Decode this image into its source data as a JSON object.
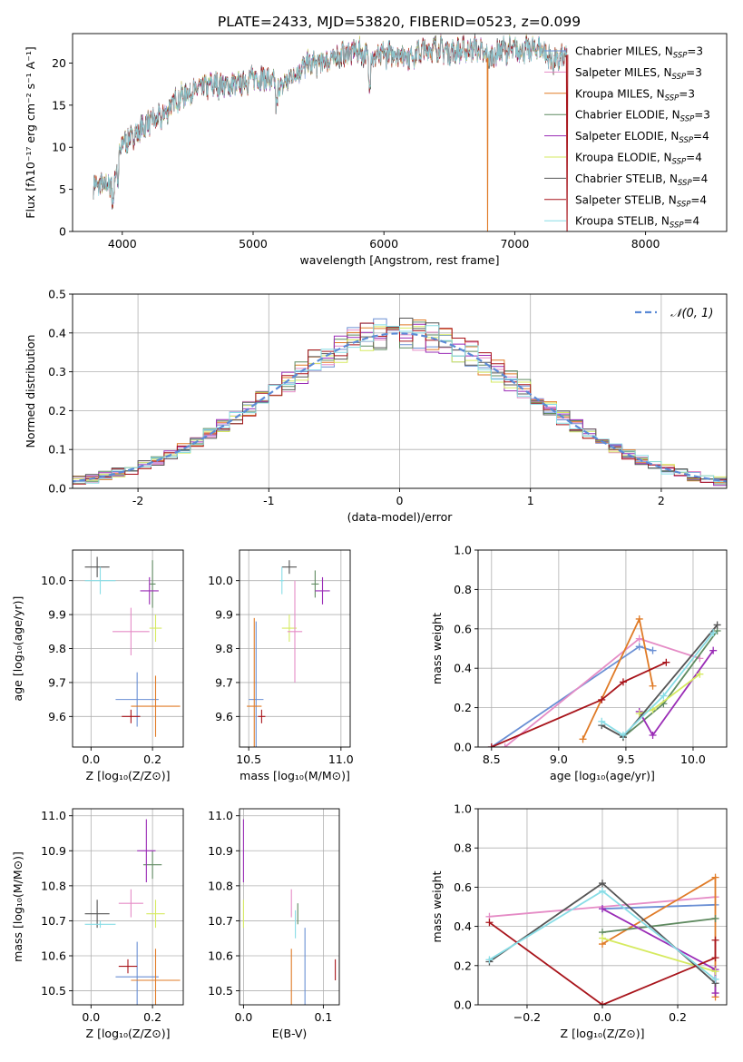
{
  "title": "PLATE=2433, MJD=53820, FIBERID=0523, z=0.099",
  "colors": {
    "Chabrier MILES": "#6a8fd4",
    "Salpeter MILES": "#e58cc6",
    "Kroupa MILES": "#e07b27",
    "Chabrier ELODIE": "#5f8a60",
    "Salpeter ELODIE": "#9a2cb6",
    "Kroupa ELODIE": "#d6ea60",
    "Chabrier STELIB": "#555555",
    "Salpeter STELIB": "#a8141b",
    "Kroupa STELIB": "#88dde6",
    "normal": "#5b8ad6"
  },
  "chart_data": [
    {
      "id": "spectrum",
      "type": "line",
      "xlabel": "wavelength [Angstrom, rest frame]",
      "ylabel": "Flux [fλ10⁻¹⁷ erg cm⁻² s⁻¹ A⁻¹]",
      "xlim": [
        3620,
        8620
      ],
      "ylim": [
        0,
        23.5
      ],
      "xticks": [
        4000,
        5000,
        6000,
        7000,
        8000
      ],
      "yticks": [
        0,
        5,
        10,
        15,
        20
      ],
      "legend_position": "right",
      "legend": [
        {
          "series": "Chabrier MILES",
          "label": "Chabrier MILES, N",
          "sub": "SSP",
          "suffix": "=3"
        },
        {
          "series": "Salpeter MILES",
          "label": "Salpeter MILES, N",
          "sub": "SSP",
          "suffix": "=3"
        },
        {
          "series": "Kroupa MILES",
          "label": "Kroupa MILES, N",
          "sub": "SSP",
          "suffix": "=3"
        },
        {
          "series": "Chabrier ELODIE",
          "label": "Chabrier ELODIE, N",
          "sub": "SSP",
          "suffix": "=3"
        },
        {
          "series": "Salpeter ELODIE",
          "label": "Salpeter ELODIE, N",
          "sub": "SSP",
          "suffix": "=4"
        },
        {
          "series": "Kroupa ELODIE",
          "label": "Kroupa ELODIE, N",
          "sub": "SSP",
          "suffix": "=4"
        },
        {
          "series": "Chabrier STELIB",
          "label": "Chabrier STELIB, N",
          "sub": "SSP",
          "suffix": "=4"
        },
        {
          "series": "Salpeter STELIB",
          "label": "Salpeter STELIB, N",
          "sub": "SSP",
          "suffix": "=4"
        },
        {
          "series": "Kroupa STELIB",
          "label": "Kroupa STELIB, N",
          "sub": "SSP",
          "suffix": "=4"
        }
      ],
      "continuum": [
        [
          3780,
          5.5
        ],
        [
          3900,
          5.5
        ],
        [
          3950,
          7.5
        ],
        [
          4000,
          10.5
        ],
        [
          4100,
          11.5
        ],
        [
          4200,
          13.0
        ],
        [
          4300,
          13.5
        ],
        [
          4400,
          15.5
        ],
        [
          4500,
          16.5
        ],
        [
          4600,
          17.0
        ],
        [
          4700,
          17.5
        ],
        [
          4800,
          17.3
        ],
        [
          4900,
          17.5
        ],
        [
          5000,
          18.3
        ],
        [
          5100,
          18.2
        ],
        [
          5200,
          17.0
        ],
        [
          5300,
          18.5
        ],
        [
          5400,
          19.8
        ],
        [
          5500,
          20.0
        ],
        [
          5600,
          20.5
        ],
        [
          5700,
          21.0
        ],
        [
          5800,
          21.5
        ],
        [
          5900,
          20.5
        ],
        [
          6000,
          21.0
        ],
        [
          6100,
          21.2
        ],
        [
          6200,
          20.8
        ],
        [
          6300,
          21.5
        ],
        [
          6400,
          21.8
        ],
        [
          6500,
          21.3
        ],
        [
          6600,
          21.5
        ],
        [
          6700,
          21.8
        ],
        [
          6800,
          20.5
        ],
        [
          6900,
          21.6
        ],
        [
          7000,
          21.5
        ],
        [
          7100,
          21.6
        ],
        [
          7200,
          21.8
        ],
        [
          7300,
          20.0
        ],
        [
          7400,
          21.0
        ]
      ],
      "masked_drops": [
        [
          6790,
          6795
        ],
        [
          7395,
          7405
        ]
      ]
    },
    {
      "id": "residuals",
      "type": "histogram",
      "xlabel": "(data-model)/error",
      "ylabel": "Normed distribution",
      "xlim": [
        -2.5,
        2.5
      ],
      "ylim": [
        0,
        0.5
      ],
      "xticks": [
        -2,
        -1,
        0,
        1,
        2
      ],
      "yticks": [
        0.0,
        0.1,
        0.2,
        0.3,
        0.4,
        0.5
      ],
      "grid": true,
      "bin_width": 0.1,
      "reference": {
        "label": "𝒩(0, 1)",
        "mean": 0,
        "sigma": 1,
        "legend_position": "top-right"
      }
    },
    {
      "id": "age-vs-Z",
      "type": "errorbar",
      "xlabel": "Z [log₁₀(Z/Z⊙)]",
      "ylabel": "age  [log₁₀(age/yr)]",
      "xlim": [
        -0.06,
        0.3
      ],
      "ylim": [
        9.51,
        10.09
      ],
      "xticks": [
        0.0,
        0.2
      ],
      "yticks": [
        9.6,
        9.7,
        9.8,
        9.9,
        10.0
      ],
      "grid": true,
      "points": [
        {
          "series": "Chabrier STELIB",
          "x": 0.02,
          "xerr": 0.04,
          "y": 10.04,
          "yerr": 0.03
        },
        {
          "series": "Kroupa STELIB",
          "x": 0.03,
          "xerr": 0.05,
          "y": 10.0,
          "yerr": 0.04
        },
        {
          "series": "Chabrier ELODIE",
          "x": 0.2,
          "xerr": 0.01,
          "y": 9.99,
          "yerr": 0.07
        },
        {
          "series": "Salpeter ELODIE",
          "x": 0.19,
          "xerr": 0.03,
          "y": 9.97,
          "yerr": 0.04
        },
        {
          "series": "Kroupa ELODIE",
          "x": 0.21,
          "xerr": 0.02,
          "y": 9.86,
          "yerr": 0.04
        },
        {
          "series": "Salpeter MILES",
          "x": 0.13,
          "xerr": 0.06,
          "y": 9.85,
          "yerr": 0.07
        },
        {
          "series": "Chabrier MILES",
          "x": 0.15,
          "xerr": 0.07,
          "y": 9.65,
          "yerr": 0.08
        },
        {
          "series": "Kroupa MILES",
          "x": 0.21,
          "xerr": 0.08,
          "y": 9.63,
          "yerr": 0.09
        },
        {
          "series": "Salpeter STELIB",
          "x": 0.13,
          "xerr": 0.03,
          "y": 9.6,
          "yerr": 0.02
        }
      ]
    },
    {
      "id": "age-vs-mass",
      "type": "errorbar",
      "xlabel": "mass [log₁₀(M/M⊙)]",
      "ylabel": "",
      "xlim": [
        10.45,
        11.05
      ],
      "ylim": [
        9.51,
        10.09
      ],
      "xticks": [
        10.5,
        11.0
      ],
      "yticks": [
        9.6,
        9.7,
        9.8,
        9.9,
        10.0
      ],
      "grid": true,
      "points": [
        {
          "series": "Chabrier STELIB",
          "x": 10.72,
          "xerr": 0.04,
          "y": 10.04,
          "yerr": 0.02
        },
        {
          "series": "Kroupa STELIB",
          "x": 10.68,
          "xerr": 0.01,
          "y": 10.0,
          "yerr": 0.04
        },
        {
          "series": "Chabrier ELODIE",
          "x": 10.86,
          "xerr": 0.02,
          "y": 9.99,
          "yerr": 0.04
        },
        {
          "series": "Salpeter ELODIE",
          "x": 10.9,
          "xerr": 0.04,
          "y": 9.97,
          "yerr": 0.04
        },
        {
          "series": "Kroupa ELODIE",
          "x": 10.72,
          "xerr": 0.04,
          "y": 9.86,
          "yerr": 0.04
        },
        {
          "series": "Salpeter MILES",
          "x": 10.75,
          "xerr": 0.04,
          "y": 9.85,
          "yerr": 0.15
        },
        {
          "series": "Chabrier MILES",
          "x": 10.54,
          "xerr": 0.04,
          "y": 9.65,
          "yerr": 0.23
        },
        {
          "series": "Kroupa MILES",
          "x": 10.53,
          "xerr": 0.04,
          "y": 9.63,
          "yerr": 0.26
        },
        {
          "series": "Salpeter STELIB",
          "x": 10.57,
          "xerr": 0.02,
          "y": 9.6,
          "yerr": 0.02
        }
      ]
    },
    {
      "id": "weight-vs-age",
      "type": "line",
      "xlabel": "age  [log₁₀(age/yr)]",
      "ylabel": "mass weight",
      "xlim": [
        8.4,
        10.25
      ],
      "ylim": [
        0,
        1.0
      ],
      "xticks": [
        8.5,
        9.0,
        9.5,
        10.0
      ],
      "yticks": [
        0.0,
        0.2,
        0.4,
        0.6,
        0.8,
        1.0
      ],
      "grid": true,
      "series": [
        {
          "series": "Chabrier MILES",
          "x": [
            8.5,
            9.6,
            9.7
          ],
          "y": [
            0.0,
            0.51,
            0.49
          ]
        },
        {
          "series": "Salpeter MILES",
          "x": [
            8.6,
            9.6,
            10.05
          ],
          "y": [
            0.0,
            0.55,
            0.45
          ]
        },
        {
          "series": "Kroupa MILES",
          "x": [
            9.18,
            9.6,
            9.7
          ],
          "y": [
            0.04,
            0.65,
            0.31
          ]
        },
        {
          "series": "Chabrier ELODIE",
          "x": [
            9.48,
            9.78,
            10.18
          ],
          "y": [
            0.05,
            0.22,
            0.59
          ]
        },
        {
          "series": "Salpeter ELODIE",
          "x": [
            9.6,
            9.7,
            10.15
          ],
          "y": [
            0.18,
            0.06,
            0.49
          ]
        },
        {
          "series": "Kroupa ELODIE",
          "x": [
            9.6,
            9.7,
            10.05
          ],
          "y": [
            0.17,
            0.19,
            0.37
          ]
        },
        {
          "series": "Chabrier STELIB",
          "x": [
            9.32,
            9.48,
            10.18
          ],
          "y": [
            0.11,
            0.05,
            0.62
          ]
        },
        {
          "series": "Salpeter STELIB",
          "x": [
            8.5,
            9.32,
            9.48,
            9.8
          ],
          "y": [
            0.0,
            0.24,
            0.33,
            0.43
          ]
        },
        {
          "series": "Kroupa STELIB",
          "x": [
            9.32,
            9.48,
            9.78,
            10.15
          ],
          "y": [
            0.13,
            0.06,
            0.26,
            0.58
          ]
        }
      ]
    },
    {
      "id": "mass-vs-Z",
      "type": "errorbar",
      "xlabel": "Z [log₁₀(Z/Z⊙)]",
      "ylabel": "mass [log₁₀(M/M⊙)]",
      "xlim": [
        -0.06,
        0.3
      ],
      "ylim": [
        10.46,
        11.02
      ],
      "xticks": [
        0.0,
        0.2
      ],
      "yticks": [
        10.5,
        10.6,
        10.7,
        10.8,
        10.9,
        11.0
      ],
      "grid": true,
      "points": [
        {
          "series": "Chabrier STELIB",
          "x": 0.02,
          "xerr": 0.04,
          "y": 10.72,
          "yerr": 0.04
        },
        {
          "series": "Kroupa STELIB",
          "x": 0.03,
          "xerr": 0.05,
          "y": 10.69,
          "yerr": 0.01
        },
        {
          "series": "Chabrier ELODIE",
          "x": 0.2,
          "xerr": 0.03,
          "y": 10.86,
          "yerr": 0.04
        },
        {
          "series": "Salpeter ELODIE",
          "x": 0.18,
          "xerr": 0.03,
          "y": 10.9,
          "yerr": 0.09
        },
        {
          "series": "Kroupa ELODIE",
          "x": 0.21,
          "xerr": 0.03,
          "y": 10.72,
          "yerr": 0.04
        },
        {
          "series": "Salpeter MILES",
          "x": 0.13,
          "xerr": 0.04,
          "y": 10.75,
          "yerr": 0.04
        },
        {
          "series": "Chabrier MILES",
          "x": 0.15,
          "xerr": 0.07,
          "y": 10.54,
          "yerr": 0.1
        },
        {
          "series": "Kroupa MILES",
          "x": 0.21,
          "xerr": 0.08,
          "y": 10.53,
          "yerr": 0.09
        },
        {
          "series": "Salpeter STELIB",
          "x": 0.12,
          "xerr": 0.03,
          "y": 10.57,
          "yerr": 0.02
        }
      ]
    },
    {
      "id": "mass-vs-EBV",
      "type": "errorbar",
      "xlabel": "E(B-V)",
      "ylabel": "",
      "xlim": [
        -0.005,
        0.12
      ],
      "ylim": [
        10.46,
        11.02
      ],
      "xticks": [
        0.0,
        0.1
      ],
      "yticks": [
        10.5,
        10.6,
        10.7,
        10.8,
        10.9,
        11.0
      ],
      "grid": true,
      "points": [
        {
          "series": "Salpeter ELODIE",
          "x": 0.0,
          "xerr": 0.0,
          "y": 10.9,
          "yerr": 0.09
        },
        {
          "series": "Kroupa ELODIE",
          "x": 0.0,
          "xerr": 0.0,
          "y": 10.72,
          "yerr": 0.04
        },
        {
          "series": "Salpeter MILES",
          "x": 0.06,
          "xerr": 0.0,
          "y": 10.75,
          "yerr": 0.04
        },
        {
          "series": "Chabrier ELODIE",
          "x": 0.068,
          "xerr": 0.0,
          "y": 10.72,
          "yerr": 0.03
        },
        {
          "series": "Kroupa STELIB",
          "x": 0.065,
          "xerr": 0.0,
          "y": 10.69,
          "yerr": 0.04
        },
        {
          "series": "Kroupa MILES",
          "x": 0.06,
          "xerr": 0.0,
          "y": 10.53,
          "yerr": 0.09
        },
        {
          "series": "Chabrier MILES",
          "x": 0.077,
          "xerr": 0.0,
          "y": 10.54,
          "yerr": 0.14
        },
        {
          "series": "Salpeter STELIB",
          "x": 0.115,
          "xerr": 0.0,
          "y": 10.56,
          "yerr": 0.03
        }
      ]
    },
    {
      "id": "weight-vs-Z",
      "type": "line",
      "xlabel": "Z [log₁₀(Z/Z⊙)]",
      "ylabel": "mass weight",
      "xlim": [
        -0.33,
        0.33
      ],
      "ylim": [
        0,
        1.0
      ],
      "xticks": [
        -0.2,
        0.0,
        0.2
      ],
      "yticks": [
        0.0,
        0.2,
        0.4,
        0.6,
        0.8,
        1.0
      ],
      "grid": true,
      "series": [
        {
          "series": "Chabrier MILES",
          "x": [
            0.0,
            0.3
          ],
          "y": [
            0.49,
            0.51
          ]
        },
        {
          "series": "Salpeter MILES",
          "x": [
            -0.3,
            0.3
          ],
          "y": [
            0.45,
            0.55
          ]
        },
        {
          "series": "Kroupa MILES",
          "x": [
            0.0,
            0.3,
            0.3
          ],
          "y": [
            0.31,
            0.65,
            0.04
          ]
        },
        {
          "series": "Chabrier ELODIE",
          "x": [
            0.0,
            0.3
          ],
          "y": [
            0.37,
            0.44
          ]
        },
        {
          "series": "Salpeter ELODIE",
          "x": [
            0.0,
            0.3,
            0.3
          ],
          "y": [
            0.49,
            0.18,
            0.06
          ]
        },
        {
          "series": "Kroupa ELODIE",
          "x": [
            0.0,
            0.3
          ],
          "y": [
            0.34,
            0.17
          ]
        },
        {
          "series": "Chabrier STELIB",
          "x": [
            -0.3,
            0.0,
            0.3
          ],
          "y": [
            0.22,
            0.62,
            0.11
          ]
        },
        {
          "series": "Salpeter STELIB",
          "x": [
            -0.3,
            0.0,
            0.3,
            0.3
          ],
          "y": [
            0.42,
            0.0,
            0.24,
            0.33
          ]
        },
        {
          "series": "Kroupa STELIB",
          "x": [
            -0.3,
            0.0,
            0.3
          ],
          "y": [
            0.23,
            0.58,
            0.13
          ]
        }
      ]
    }
  ]
}
